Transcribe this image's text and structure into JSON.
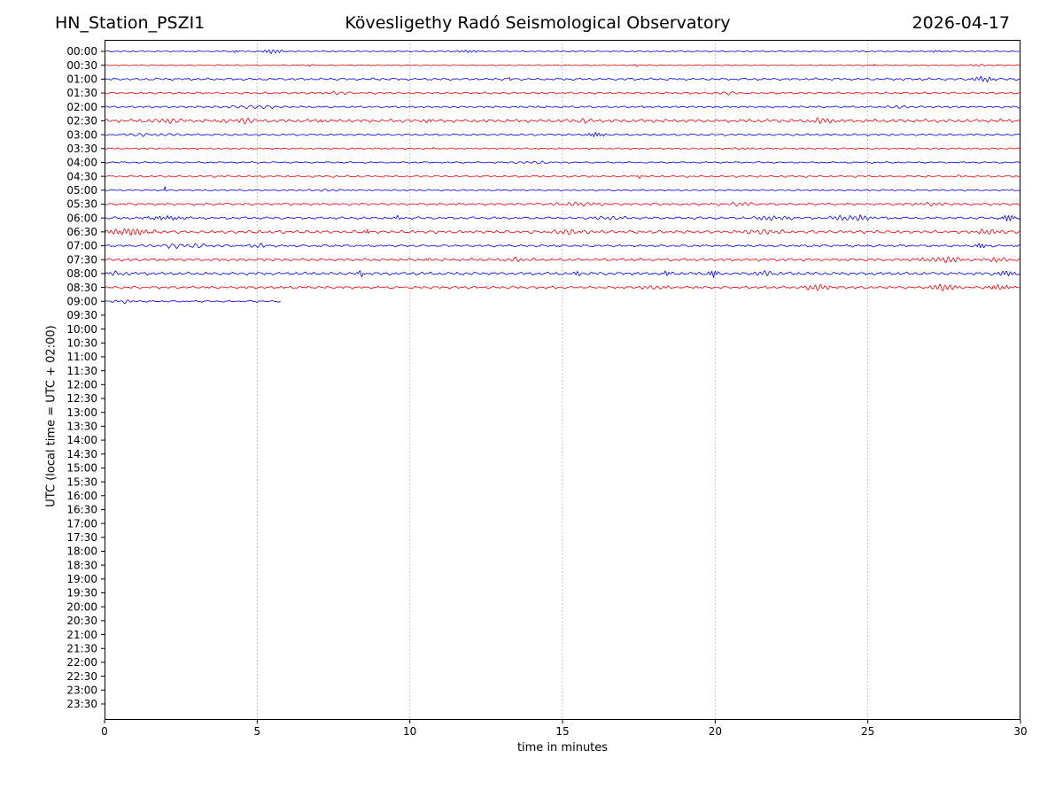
{
  "header": {
    "station": "HN_Station_PSZI1",
    "observatory": "Kövesligethy Radó Seismological Observatory",
    "date": "2026-04-17"
  },
  "chart_data": {
    "type": "line",
    "subtype": "helicorder_dayplot",
    "xlabel": "time in minutes",
    "ylabel": "UTC (local time = UTC + 02:00)",
    "xlim": [
      0,
      30
    ],
    "x_ticks": [
      0,
      5,
      10,
      15,
      20,
      25,
      30
    ],
    "gridline_minutes": [
      5,
      10,
      15,
      20,
      25
    ],
    "minutes_per_row": 30,
    "grid_style": "dotted",
    "trace_colors": {
      "hour_start": "#0000ee",
      "half_hour": "#ee0000"
    },
    "y_tick_labels": [
      "00:00",
      "00:30",
      "01:00",
      "01:30",
      "02:00",
      "02:30",
      "03:00",
      "03:30",
      "04:00",
      "04:30",
      "05:00",
      "05:30",
      "06:00",
      "06:30",
      "07:00",
      "07:30",
      "08:00",
      "08:30",
      "09:00",
      "09:30",
      "10:00",
      "10:30",
      "11:00",
      "11:30",
      "12:00",
      "12:30",
      "13:00",
      "13:30",
      "14:00",
      "14:30",
      "15:00",
      "15:30",
      "16:00",
      "16:30",
      "17:00",
      "17:30",
      "18:00",
      "18:30",
      "19:00",
      "19:30",
      "20:00",
      "20:30",
      "21:00",
      "21:30",
      "22:00",
      "22:30",
      "23:00",
      "23:30"
    ],
    "rows": [
      {
        "label": "00:00",
        "color": "#0000ee",
        "end": 30,
        "amp": 0.7,
        "events": [
          {
            "m": 4.3,
            "a": 2.0,
            "w": 0.06,
            "f": 10
          },
          {
            "m": 5.5,
            "a": 2.2,
            "w": 0.35,
            "f": 26
          },
          {
            "m": 11.9,
            "a": 1.4,
            "w": 0.35,
            "f": 26
          },
          {
            "m": 27.3,
            "a": 1.2,
            "w": 0.2,
            "f": 26
          }
        ]
      },
      {
        "label": "00:30",
        "color": "#ee0000",
        "end": 30,
        "amp": 0.7,
        "events": [
          {
            "m": 6.7,
            "a": 1.2,
            "w": 0.08,
            "f": 8
          },
          {
            "m": 17.4,
            "a": 1.5,
            "w": 0.06,
            "f": 8
          },
          {
            "m": 25.2,
            "a": 1.8,
            "w": 0.05,
            "f": 9
          },
          {
            "m": 28.6,
            "a": 1.1,
            "w": 0.3,
            "f": 5
          }
        ]
      },
      {
        "label": "01:00",
        "color": "#0000ee",
        "end": 30,
        "amp": 1.3,
        "events": [
          {
            "m": 13.3,
            "a": 3.0,
            "w": 0.05,
            "f": 10
          },
          {
            "m": 28.8,
            "a": 2.4,
            "w": 0.45,
            "f": 26
          }
        ]
      },
      {
        "label": "01:30",
        "color": "#ee0000",
        "end": 30,
        "amp": 1.1,
        "events": [
          {
            "m": 7.5,
            "a": 1.3,
            "w": 0.8,
            "f": 4
          },
          {
            "m": 20.5,
            "a": 1.2,
            "w": 0.5,
            "f": 4
          }
        ]
      },
      {
        "label": "02:00",
        "color": "#0000ee",
        "end": 30,
        "amp": 1.1,
        "events": [
          {
            "m": 5.0,
            "a": 1.4,
            "w": 1.0,
            "f": 3.5
          },
          {
            "m": 26.0,
            "a": 1.0,
            "w": 0.6,
            "f": 4
          }
        ]
      },
      {
        "label": "02:30",
        "color": "#ee0000",
        "end": 30,
        "amp": 1.8,
        "events": [
          {
            "m": 2.0,
            "a": 2.4,
            "w": 0.5,
            "f": 5
          },
          {
            "m": 4.5,
            "a": 2.8,
            "w": 0.5,
            "f": 5
          },
          {
            "m": 7.1,
            "a": 2.4,
            "w": 0.1,
            "f": 6
          },
          {
            "m": 10.6,
            "a": 2.0,
            "w": 0.08,
            "f": 6
          },
          {
            "m": 15.7,
            "a": 3.0,
            "w": 0.1,
            "f": 6
          },
          {
            "m": 23.4,
            "a": 3.2,
            "w": 0.4,
            "f": 6
          }
        ]
      },
      {
        "label": "03:00",
        "color": "#0000ee",
        "end": 30,
        "amp": 1.1,
        "events": [
          {
            "m": 1.5,
            "a": 1.5,
            "w": 0.8,
            "f": 4
          },
          {
            "m": 16.1,
            "a": 2.4,
            "w": 0.3,
            "f": 24
          }
        ]
      },
      {
        "label": "03:30",
        "color": "#ee0000",
        "end": 30,
        "amp": 0.9,
        "events": [
          {
            "m": 10.8,
            "a": 1.8,
            "w": 0.05,
            "f": 8
          },
          {
            "m": 21.0,
            "a": 1.0,
            "w": 0.4,
            "f": 5
          }
        ]
      },
      {
        "label": "04:00",
        "color": "#0000ee",
        "end": 30,
        "amp": 0.9,
        "events": [
          {
            "m": 14.0,
            "a": 1.3,
            "w": 0.8,
            "f": 4
          }
        ]
      },
      {
        "label": "04:30",
        "color": "#ee0000",
        "end": 30,
        "amp": 1.1,
        "events": [
          {
            "m": 17.5,
            "a": 2.8,
            "w": 0.07,
            "f": 7
          },
          {
            "m": 28.0,
            "a": 1.2,
            "w": 0.4,
            "f": 5
          }
        ]
      },
      {
        "label": "05:00",
        "color": "#0000ee",
        "end": 30,
        "amp": 0.9,
        "events": [
          {
            "m": 1.97,
            "a": 4.5,
            "w": 0.03,
            "f": 12
          },
          {
            "m": 7.5,
            "a": 1.1,
            "w": 0.6,
            "f": 4
          }
        ]
      },
      {
        "label": "05:30",
        "color": "#ee0000",
        "end": 30,
        "amp": 1.4,
        "events": [
          {
            "m": 15.5,
            "a": 1.8,
            "w": 0.8,
            "f": 5
          },
          {
            "m": 20.8,
            "a": 1.8,
            "w": 0.5,
            "f": 5
          },
          {
            "m": 27.0,
            "a": 1.5,
            "w": 0.5,
            "f": 5
          }
        ]
      },
      {
        "label": "06:00",
        "color": "#0000ee",
        "end": 30,
        "amp": 1.4,
        "events": [
          {
            "m": 2.0,
            "a": 2.6,
            "w": 0.5,
            "f": 8
          },
          {
            "m": 9.6,
            "a": 2.2,
            "w": 0.08,
            "f": 8
          },
          {
            "m": 16.5,
            "a": 1.8,
            "w": 0.6,
            "f": 5
          },
          {
            "m": 21.8,
            "a": 2.2,
            "w": 0.7,
            "f": 6
          },
          {
            "m": 24.5,
            "a": 2.8,
            "w": 0.8,
            "f": 6
          },
          {
            "m": 29.6,
            "a": 3.2,
            "w": 0.25,
            "f": 24
          }
        ]
      },
      {
        "label": "06:30",
        "color": "#ee0000",
        "end": 30,
        "amp": 1.7,
        "events": [
          {
            "m": 0.8,
            "a": 3.8,
            "w": 0.7,
            "f": 7
          },
          {
            "m": 8.6,
            "a": 4.5,
            "w": 0.05,
            "f": 9
          },
          {
            "m": 15.3,
            "a": 2.6,
            "w": 0.6,
            "f": 5
          },
          {
            "m": 21.5,
            "a": 2.6,
            "w": 0.6,
            "f": 5
          },
          {
            "m": 29.0,
            "a": 2.4,
            "w": 0.4,
            "f": 6
          }
        ]
      },
      {
        "label": "07:00",
        "color": "#0000ee",
        "end": 30,
        "amp": 1.3,
        "events": [
          {
            "m": 2.5,
            "a": 2.0,
            "w": 1.2,
            "f": 4
          },
          {
            "m": 5.0,
            "a": 2.2,
            "w": 0.3,
            "f": 5
          },
          {
            "m": 28.7,
            "a": 2.4,
            "w": 0.18,
            "f": 24
          }
        ]
      },
      {
        "label": "07:30",
        "color": "#ee0000",
        "end": 30,
        "amp": 1.5,
        "events": [
          {
            "m": 10.6,
            "a": 2.8,
            "w": 0.08,
            "f": 7
          },
          {
            "m": 13.5,
            "a": 1.8,
            "w": 0.5,
            "f": 5
          },
          {
            "m": 27.5,
            "a": 2.8,
            "w": 0.8,
            "f": 6
          },
          {
            "m": 29.3,
            "a": 2.8,
            "w": 0.3,
            "f": 6
          }
        ]
      },
      {
        "label": "08:00",
        "color": "#0000ee",
        "end": 30,
        "amp": 1.7,
        "events": [
          {
            "m": 0.5,
            "a": 2.2,
            "w": 0.3,
            "f": 6
          },
          {
            "m": 8.4,
            "a": 4.5,
            "w": 0.09,
            "f": 8
          },
          {
            "m": 15.5,
            "a": 3.2,
            "w": 0.07,
            "f": 8
          },
          {
            "m": 18.4,
            "a": 3.2,
            "w": 0.12,
            "f": 24
          },
          {
            "m": 19.95,
            "a": 3.8,
            "w": 0.18,
            "f": 24
          },
          {
            "m": 21.7,
            "a": 2.4,
            "w": 0.4,
            "f": 6
          },
          {
            "m": 29.5,
            "a": 2.4,
            "w": 0.3,
            "f": 8
          }
        ]
      },
      {
        "label": "08:30",
        "color": "#ee0000",
        "end": 30,
        "amp": 1.4,
        "events": [
          {
            "m": 12.5,
            "a": 1.8,
            "w": 0.08,
            "f": 7
          },
          {
            "m": 18.0,
            "a": 1.8,
            "w": 0.5,
            "f": 5
          },
          {
            "m": 23.3,
            "a": 2.8,
            "w": 0.5,
            "f": 6
          },
          {
            "m": 27.5,
            "a": 2.8,
            "w": 0.6,
            "f": 6
          },
          {
            "m": 29.3,
            "a": 3.0,
            "w": 0.4,
            "f": 7
          }
        ]
      },
      {
        "label": "09:00",
        "color": "#0000ee",
        "end": 5.77,
        "amp": 1.0,
        "events": [
          {
            "m": 0.7,
            "a": 1.6,
            "w": 0.4,
            "f": 5
          }
        ]
      }
    ]
  }
}
